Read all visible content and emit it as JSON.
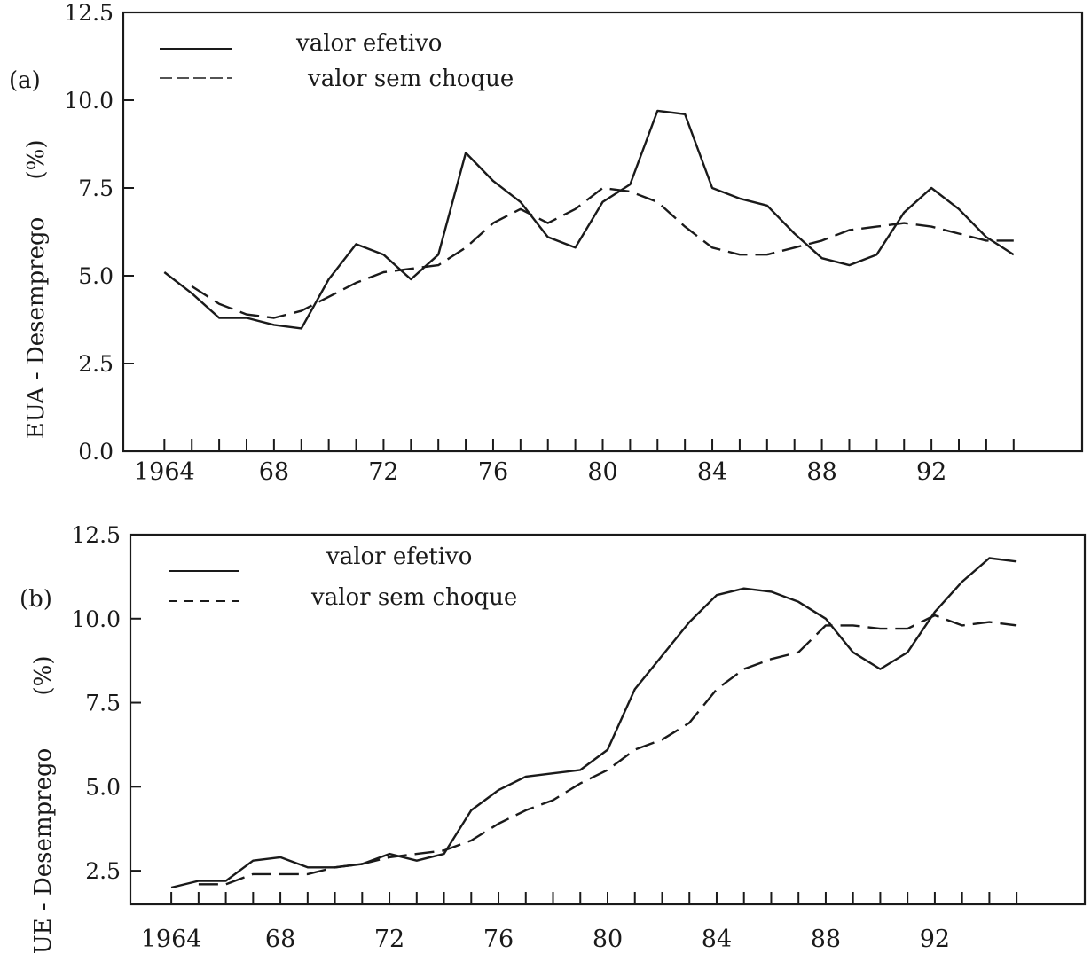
{
  "chart_data": [
    {
      "type": "line",
      "panel_label": "(a)",
      "ylabel_main": "EUA - Desemprego",
      "ylabel_unit": "(%)",
      "ylim": [
        0,
        12.5
      ],
      "yticks": [
        0,
        2.5,
        5,
        7.5,
        10,
        12.5
      ],
      "ytick_labels": [
        "0.0",
        "2.5",
        "5.0",
        "7.5",
        "10.0",
        "12.5"
      ],
      "xlim": [
        1962.5,
        1997.5
      ],
      "xticks": [
        1964,
        1968,
        1972,
        1976,
        1980,
        1984,
        1988,
        1992
      ],
      "xtick_labels": [
        "1964",
        "68",
        "72",
        "76",
        "80",
        "84",
        "88",
        "92"
      ],
      "legend_position": "top-left",
      "series": [
        {
          "name": "valor efetivo",
          "style": "solid",
          "x": [
            1964,
            1965,
            1966,
            1967,
            1968,
            1969,
            1970,
            1971,
            1972,
            1973,
            1974,
            1975,
            1976,
            1977,
            1978,
            1979,
            1980,
            1981,
            1982,
            1983,
            1984,
            1985,
            1986,
            1987,
            1988,
            1989,
            1990,
            1991,
            1992,
            1993,
            1994,
            1995
          ],
          "y": [
            5.1,
            4.5,
            3.8,
            3.8,
            3.6,
            3.5,
            4.9,
            5.9,
            5.6,
            4.9,
            5.6,
            8.5,
            7.7,
            7.1,
            6.1,
            5.8,
            7.1,
            7.6,
            9.7,
            9.6,
            7.5,
            7.2,
            7.0,
            6.2,
            5.5,
            5.3,
            5.6,
            6.8,
            7.5,
            6.9,
            6.1,
            5.6
          ]
        },
        {
          "name": "valor sem choque",
          "style": "dashed",
          "x": [
            1965,
            1966,
            1967,
            1968,
            1969,
            1970,
            1971,
            1972,
            1973,
            1974,
            1975,
            1976,
            1977,
            1978,
            1979,
            1980,
            1981,
            1982,
            1983,
            1984,
            1985,
            1986,
            1987,
            1988,
            1989,
            1990,
            1991,
            1992,
            1993,
            1994,
            1995
          ],
          "y": [
            4.7,
            4.2,
            3.9,
            3.8,
            4.0,
            4.4,
            4.8,
            5.1,
            5.2,
            5.3,
            5.8,
            6.5,
            6.9,
            6.5,
            6.9,
            7.5,
            7.4,
            7.1,
            6.4,
            5.8,
            5.6,
            5.6,
            5.8,
            6.0,
            6.3,
            6.4,
            6.5,
            6.4,
            6.2,
            6.0,
            6.0
          ]
        }
      ]
    },
    {
      "type": "line",
      "panel_label": "(b)",
      "ylabel_main": "UE - Desemprego",
      "ylabel_unit": "(%)",
      "ylim": [
        1.5,
        12.5
      ],
      "yticks": [
        2.5,
        5,
        7.5,
        10,
        12.5
      ],
      "ytick_labels": [
        "2.5",
        "5.0",
        "7.5",
        "10.0",
        "12.5"
      ],
      "xlim": [
        1962.5,
        1997.5
      ],
      "xticks": [
        1964,
        1968,
        1972,
        1976,
        1980,
        1984,
        1988,
        1992
      ],
      "xtick_labels": [
        "1964",
        "68",
        "72",
        "76",
        "80",
        "84",
        "88",
        "92"
      ],
      "legend_position": "top-left",
      "series": [
        {
          "name": "valor efetivo",
          "style": "solid",
          "x": [
            1964,
            1965,
            1966,
            1967,
            1968,
            1969,
            1970,
            1971,
            1972,
            1973,
            1974,
            1975,
            1976,
            1977,
            1978,
            1979,
            1980,
            1981,
            1982,
            1983,
            1984,
            1985,
            1986,
            1987,
            1988,
            1989,
            1990,
            1991,
            1992,
            1993,
            1994,
            1995
          ],
          "y": [
            2.0,
            2.2,
            2.2,
            2.8,
            2.9,
            2.6,
            2.6,
            2.7,
            3.0,
            2.8,
            3.0,
            4.3,
            4.9,
            5.3,
            5.4,
            5.5,
            6.1,
            7.9,
            8.9,
            9.9,
            10.7,
            10.9,
            10.8,
            10.5,
            10.0,
            9.0,
            8.5,
            9.0,
            10.2,
            11.1,
            11.8,
            11.7
          ]
        },
        {
          "name": "valor sem choque",
          "style": "dashed",
          "x": [
            1965,
            1966,
            1967,
            1968,
            1969,
            1970,
            1971,
            1972,
            1973,
            1974,
            1975,
            1976,
            1977,
            1978,
            1979,
            1980,
            1981,
            1982,
            1983,
            1984,
            1985,
            1986,
            1987,
            1988,
            1989,
            1990,
            1991,
            1992,
            1993,
            1994,
            1995
          ],
          "y": [
            2.1,
            2.1,
            2.4,
            2.4,
            2.4,
            2.6,
            2.7,
            2.9,
            3.0,
            3.1,
            3.4,
            3.9,
            4.3,
            4.6,
            5.1,
            5.5,
            6.1,
            6.4,
            6.9,
            7.9,
            8.5,
            8.8,
            9.0,
            9.8,
            9.8,
            9.7,
            9.7,
            10.1,
            9.8,
            9.9,
            9.8
          ]
        }
      ]
    }
  ]
}
